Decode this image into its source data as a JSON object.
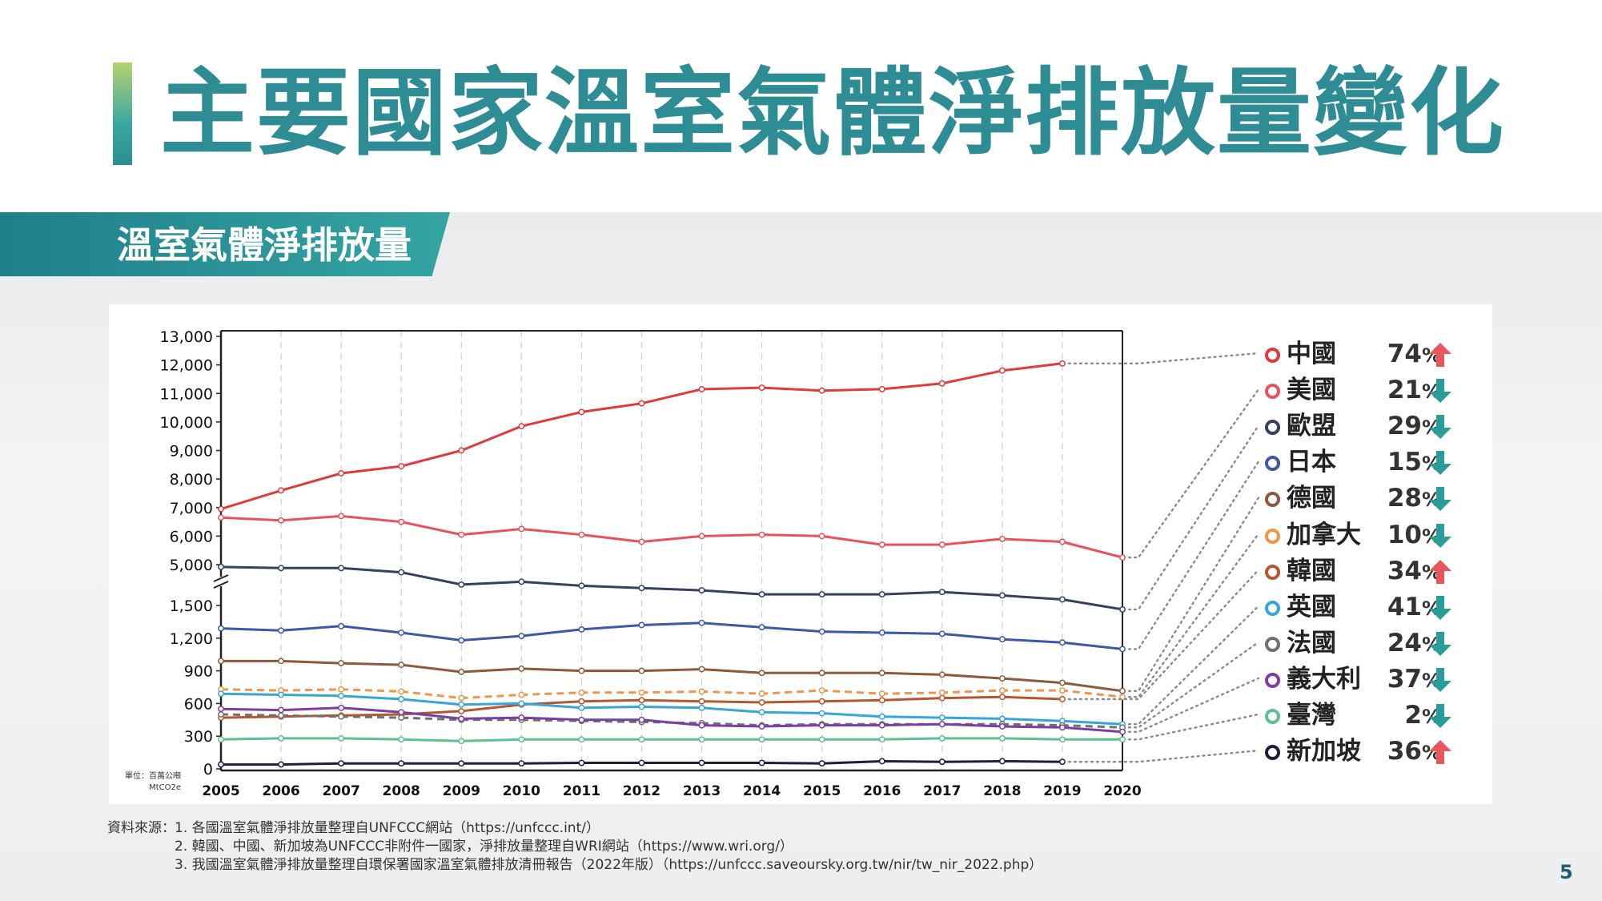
{
  "title": "主要國家溫室氣體淨排放量變化",
  "section_title": "溫室氣體淨排放量",
  "unit_note": "單位：百萬公噸 MtCO2e",
  "page_number": "5",
  "sources": {
    "label": "資料來源：",
    "items": [
      "1. 各國溫室氣體淨排放量整理自UNFCCC網站（https://unfccc.int/）",
      "2. 韓國、中國、新加坡為UNFCCC非附件一國家，淨排放量整理自WRI網站（https://www.wri.org/）",
      "3. 我國溫室氣體淨排放量整理自環保署國家溫室氣體排放清冊報告（2022年版）（https://unfccc.saveoursky.org.tw/nir/tw_nir_2022.php）"
    ]
  },
  "legend": [
    {
      "name": "中國",
      "pct": "74",
      "direction": "up",
      "color": "#e03a3a"
    },
    {
      "name": "美國",
      "pct": "21",
      "direction": "down",
      "color": "#e8525b"
    },
    {
      "name": "歐盟",
      "pct": "29",
      "direction": "down",
      "color": "#34405f"
    },
    {
      "name": "日本",
      "pct": "15",
      "direction": "down",
      "color": "#3c58a8"
    },
    {
      "name": "德國",
      "pct": "28",
      "direction": "down",
      "color": "#8b5a3c"
    },
    {
      "name": "加拿大",
      "pct": "10",
      "direction": "down",
      "color": "#f0964a"
    },
    {
      "name": "韓國",
      "pct": "34",
      "direction": "up",
      "color": "#b5562e"
    },
    {
      "name": "英國",
      "pct": "41",
      "direction": "down",
      "color": "#34a6d8"
    },
    {
      "name": "法國",
      "pct": "24",
      "direction": "down",
      "color": "#707070"
    },
    {
      "name": "義大利",
      "pct": "37",
      "direction": "down",
      "color": "#7a3fa3"
    },
    {
      "name": "臺灣",
      "pct": "2",
      "direction": "down",
      "color": "#5cc18f"
    },
    {
      "name": "新加坡",
      "pct": "36",
      "direction": "up",
      "color": "#1d1f3a"
    }
  ],
  "arrow_colors": {
    "up": "#e8585a",
    "down": "#2a9d9a"
  },
  "chart_data": {
    "type": "line",
    "x": [
      "2005",
      "2006",
      "2007",
      "2008",
      "2009",
      "2010",
      "2011",
      "2012",
      "2013",
      "2014",
      "2015",
      "2016",
      "2017",
      "2018",
      "2019",
      "2020"
    ],
    "y_ticks_upper": [
      "13,000",
      "12,000",
      "11,000",
      "10,000",
      "9,000",
      "8,000",
      "7,000",
      "6,000",
      "5,000"
    ],
    "y_ticks_lower": [
      "1,500",
      "1,200",
      "900",
      "600",
      "300",
      "0"
    ],
    "axis_break": true,
    "ylim_upper": [
      5000,
      13000
    ],
    "ylim_lower": [
      0,
      1700
    ],
    "grid": "vertical dashed",
    "series": [
      {
        "name": "中國",
        "color": "#e03a3a",
        "dash": false,
        "values": [
          6950,
          7600,
          8200,
          8450,
          9000,
          9850,
          10350,
          10650,
          11150,
          11200,
          11100,
          11150,
          11350,
          11800,
          12050,
          null
        ]
      },
      {
        "name": "美國",
        "color": "#e8525b",
        "dash": false,
        "values": [
          6650,
          6550,
          6700,
          6500,
          6050,
          6250,
          6050,
          5800,
          6000,
          6050,
          6000,
          5700,
          5700,
          5900,
          5800,
          5250
        ]
      },
      {
        "name": "歐盟",
        "color": "#34405f",
        "dash": false,
        "values": [
          4920,
          4880,
          4880,
          4730,
          4300,
          4400,
          4260,
          4180,
          4100,
          3960,
          3960,
          3960,
          4040,
          3920,
          3780,
          3430
        ]
      },
      {
        "name": "日本",
        "color": "#3c58a8",
        "dash": false,
        "values": [
          1290,
          1270,
          1310,
          1250,
          1180,
          1220,
          1280,
          1320,
          1340,
          1300,
          1260,
          1250,
          1240,
          1190,
          1160,
          1100
        ]
      },
      {
        "name": "韓國",
        "color": "#b5562e",
        "dash": false,
        "values": [
          470,
          480,
          490,
          500,
          530,
          590,
          620,
          630,
          620,
          610,
          620,
          630,
          650,
          660,
          640,
          null
        ]
      },
      {
        "name": "德國",
        "color": "#8b5a3c",
        "dash": false,
        "values": [
          990,
          990,
          970,
          955,
          890,
          920,
          900,
          900,
          915,
          880,
          880,
          880,
          865,
          830,
          790,
          715
        ]
      },
      {
        "name": "加拿大",
        "color": "#f0964a",
        "dash": true,
        "values": [
          730,
          720,
          730,
          710,
          650,
          680,
          700,
          700,
          710,
          690,
          720,
          690,
          700,
          720,
          720,
          660
        ]
      },
      {
        "name": "英國",
        "color": "#34a6d8",
        "dash": false,
        "values": [
          690,
          680,
          670,
          640,
          590,
          600,
          560,
          570,
          560,
          520,
          510,
          480,
          470,
          460,
          440,
          410
        ]
      },
      {
        "name": "法國",
        "color": "#707070",
        "dash": true,
        "values": [
          500,
          490,
          480,
          470,
          450,
          450,
          440,
          430,
          420,
          400,
          410,
          410,
          410,
          410,
          400,
          380
        ]
      },
      {
        "name": "義大利",
        "color": "#7a3fa3",
        "dash": false,
        "values": [
          550,
          540,
          560,
          520,
          460,
          470,
          450,
          450,
          400,
          390,
          400,
          400,
          410,
          390,
          380,
          340
        ]
      },
      {
        "name": "臺灣",
        "color": "#5cc18f",
        "dash": false,
        "values": [
          270,
          280,
          280,
          270,
          255,
          270,
          270,
          270,
          270,
          270,
          270,
          270,
          280,
          280,
          270,
          270
        ]
      },
      {
        "name": "新加坡",
        "color": "#1d1f3a",
        "dash": false,
        "values": [
          40,
          40,
          50,
          50,
          50,
          50,
          55,
          55,
          55,
          55,
          50,
          70,
          65,
          70,
          65,
          null
        ]
      }
    ]
  }
}
